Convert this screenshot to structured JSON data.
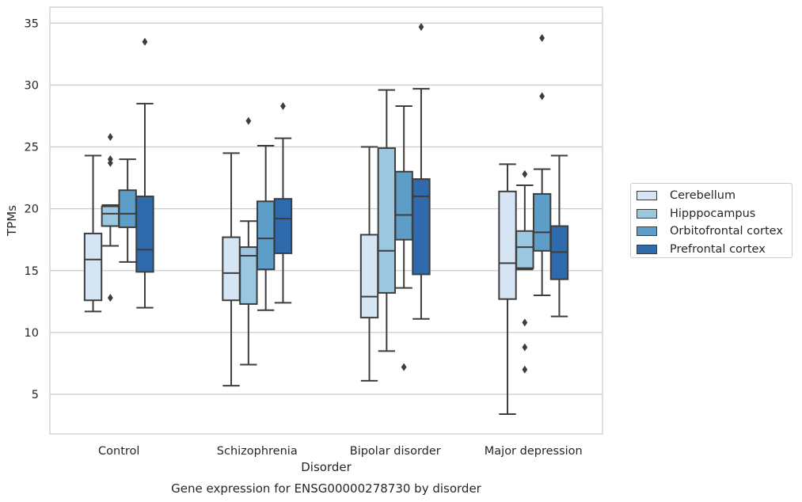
{
  "chart_data": {
    "type": "box",
    "title": "Gene expression for ENSG00000278730 by disorder",
    "xlabel": "Disorder",
    "ylabel": "TPMs",
    "categories": [
      "Control",
      "Schizophrenia",
      "Bipolar disorder",
      "Major depression"
    ],
    "ylim": [
      1.8,
      36.3
    ],
    "yticks": [
      5,
      10,
      15,
      20,
      25,
      30,
      35
    ],
    "grid": true,
    "legend_position": "right",
    "series": [
      {
        "name": "Cerebellum",
        "color": "#d6e5f3",
        "boxes": [
          {
            "whisker_low": 11.7,
            "q1": 12.6,
            "median": 15.9,
            "q3": 18.0,
            "whisker_high": 24.3,
            "outliers": []
          },
          {
            "whisker_low": 5.7,
            "q1": 12.6,
            "median": 14.8,
            "q3": 17.7,
            "whisker_high": 24.5,
            "outliers": []
          },
          {
            "whisker_low": 6.1,
            "q1": 11.2,
            "median": 12.9,
            "q3": 17.9,
            "whisker_high": 25.0,
            "outliers": []
          },
          {
            "whisker_low": 3.4,
            "q1": 12.7,
            "median": 15.6,
            "q3": 21.4,
            "whisker_high": 23.6,
            "outliers": []
          }
        ]
      },
      {
        "name": "Hipppocampus",
        "color": "#9bc8e0",
        "boxes": [
          {
            "whisker_low": 17.0,
            "q1": 18.6,
            "median": 19.6,
            "q3": 20.2,
            "whisker_high": 20.3,
            "outliers": [
              25.8,
              24.0,
              23.7,
              12.8
            ]
          },
          {
            "whisker_low": 7.4,
            "q1": 12.3,
            "median": 16.2,
            "q3": 16.9,
            "whisker_high": 19.0,
            "outliers": [
              27.1
            ]
          },
          {
            "whisker_low": 8.5,
            "q1": 13.2,
            "median": 16.6,
            "q3": 24.9,
            "whisker_high": 29.6,
            "outliers": []
          },
          {
            "whisker_low": 15.1,
            "q1": 15.2,
            "median": 16.9,
            "q3": 18.2,
            "whisker_high": 21.9,
            "outliers": [
              22.8,
              10.8,
              8.8,
              7.0
            ]
          }
        ]
      },
      {
        "name": "Orbitofrontal cortex",
        "color": "#5d9ec9",
        "boxes": [
          {
            "whisker_low": 15.7,
            "q1": 18.5,
            "median": 19.6,
            "q3": 21.5,
            "whisker_high": 24.0,
            "outliers": []
          },
          {
            "whisker_low": 11.8,
            "q1": 15.1,
            "median": 17.6,
            "q3": 20.6,
            "whisker_high": 25.1,
            "outliers": []
          },
          {
            "whisker_low": 13.6,
            "q1": 17.5,
            "median": 19.5,
            "q3": 23.0,
            "whisker_high": 28.3,
            "outliers": [
              7.2
            ]
          },
          {
            "whisker_low": 13.0,
            "q1": 16.6,
            "median": 18.1,
            "q3": 21.2,
            "whisker_high": 23.2,
            "outliers": [
              33.8,
              29.1
            ]
          }
        ]
      },
      {
        "name": "Prefrontal cortex",
        "color": "#2e6aac",
        "boxes": [
          {
            "whisker_low": 12.0,
            "q1": 14.9,
            "median": 16.7,
            "q3": 21.0,
            "whisker_high": 28.5,
            "outliers": [
              33.5
            ]
          },
          {
            "whisker_low": 12.4,
            "q1": 16.4,
            "median": 19.2,
            "q3": 20.8,
            "whisker_high": 25.7,
            "outliers": [
              28.3
            ]
          },
          {
            "whisker_low": 11.1,
            "q1": 14.7,
            "median": 21.0,
            "q3": 22.4,
            "whisker_high": 29.7,
            "outliers": [
              34.7
            ]
          },
          {
            "whisker_low": 11.3,
            "q1": 14.3,
            "median": 16.5,
            "q3": 18.6,
            "whisker_high": 24.3,
            "outliers": []
          }
        ]
      }
    ]
  }
}
